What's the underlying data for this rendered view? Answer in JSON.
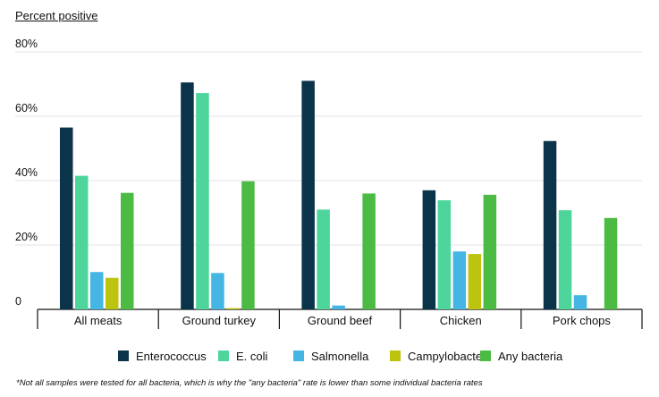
{
  "chart_data": {
    "type": "bar",
    "ylabel": "Percent positive",
    "ylim": [
      0,
      80
    ],
    "yticks": [
      {
        "value": 0,
        "label": "0"
      },
      {
        "value": 20,
        "label": "20%"
      },
      {
        "value": 40,
        "label": "40%"
      },
      {
        "value": 60,
        "label": "60%"
      },
      {
        "value": 80,
        "label": "80%"
      }
    ],
    "grid": true,
    "legend_position": "bottom",
    "categories": [
      "All meats",
      "Ground turkey",
      "Ground beef",
      "Chicken",
      "Pork chops"
    ],
    "series": [
      {
        "name": "Enterococcus",
        "color": "#0b3349",
        "values": [
          56.5,
          70.5,
          71,
          37,
          52.3
        ]
      },
      {
        "name": "E. coli",
        "color": "#4dd59c",
        "values": [
          41.5,
          67.2,
          31,
          33.9,
          30.8
        ]
      },
      {
        "name": "Salmonella",
        "color": "#45b6e3",
        "values": [
          11.6,
          11.3,
          1.2,
          18,
          4.4
        ]
      },
      {
        "name": "Campylobacter",
        "color": "#bcc40f",
        "values": [
          9.8,
          0.4,
          0,
          17.2,
          0
        ]
      },
      {
        "name": "Any bacteria",
        "color": "#4cbb43",
        "values": [
          36.2,
          39.8,
          36,
          35.6,
          28.4
        ]
      }
    ],
    "footnote": "*Not all samples were tested for all bacteria, which is why the \"any bacteria\" rate is lower than some individual bacteria rates"
  }
}
